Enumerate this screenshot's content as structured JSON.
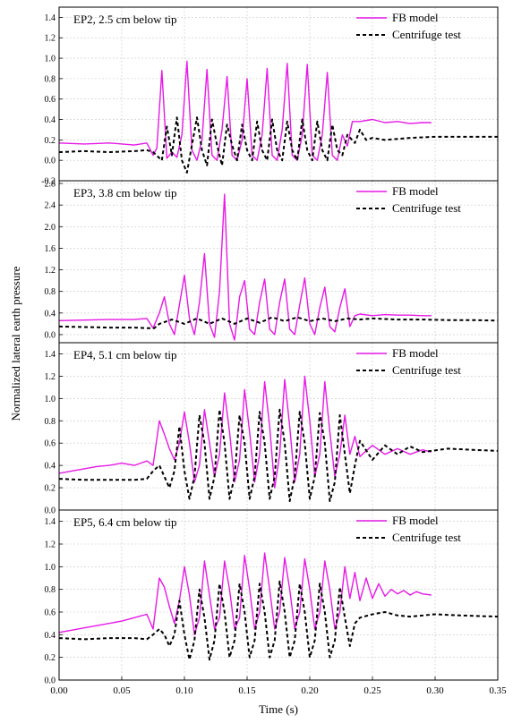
{
  "figure": {
    "ylabel": "Normalized lateral earth pressure",
    "xlabel": "Time (s)",
    "x_ticks": [
      "0.00",
      "0.05",
      "0.10",
      "0.15",
      "0.20",
      "0.25",
      "0.30",
      "0.35"
    ]
  },
  "colors": {
    "fb_model": "#e619e6",
    "centrifuge": "#000000",
    "grid": "#c8c8c8"
  },
  "chart_data": [
    {
      "type": "line",
      "title": "EP2, 2.5 cm below tip",
      "xlim": [
        0,
        0.35
      ],
      "ylim": [
        -0.2,
        1.5
      ],
      "y_ticks": [
        "-0.2",
        "0.0",
        "0.2",
        "0.4",
        "0.6",
        "0.8",
        "1.0",
        "1.2",
        "1.4"
      ],
      "grid": true,
      "legend_position": "top-right",
      "series": [
        {
          "name": "FB model",
          "x": [
            0,
            0.02,
            0.04,
            0.06,
            0.07,
            0.075,
            0.078,
            0.082,
            0.086,
            0.09,
            0.094,
            0.098,
            0.102,
            0.106,
            0.11,
            0.114,
            0.118,
            0.122,
            0.126,
            0.13,
            0.134,
            0.138,
            0.142,
            0.146,
            0.15,
            0.154,
            0.158,
            0.162,
            0.166,
            0.17,
            0.174,
            0.178,
            0.182,
            0.186,
            0.19,
            0.194,
            0.198,
            0.202,
            0.206,
            0.21,
            0.214,
            0.218,
            0.222,
            0.226,
            0.23,
            0.234,
            0.24,
            0.25,
            0.26,
            0.27,
            0.28,
            0.29,
            0.297
          ],
          "y": [
            0.17,
            0.16,
            0.17,
            0.15,
            0.17,
            0.05,
            0.12,
            0.88,
            0.02,
            0.08,
            0.03,
            0.25,
            0.97,
            0.1,
            0.0,
            0.2,
            0.89,
            0.05,
            0.0,
            0.3,
            0.82,
            0.05,
            0.0,
            0.2,
            0.8,
            0.05,
            0.0,
            0.25,
            0.9,
            0.05,
            0.0,
            0.3,
            0.95,
            0.05,
            0.0,
            0.25,
            0.94,
            0.05,
            0.0,
            0.25,
            0.86,
            0.05,
            0.0,
            0.25,
            0.14,
            0.38,
            0.38,
            0.4,
            0.37,
            0.38,
            0.36,
            0.37,
            0.37
          ]
        },
        {
          "name": "Centrifuge test",
          "x": [
            0,
            0.02,
            0.04,
            0.06,
            0.07,
            0.075,
            0.082,
            0.086,
            0.09,
            0.094,
            0.098,
            0.102,
            0.106,
            0.11,
            0.114,
            0.118,
            0.122,
            0.126,
            0.13,
            0.134,
            0.138,
            0.142,
            0.146,
            0.15,
            0.154,
            0.158,
            0.162,
            0.166,
            0.17,
            0.174,
            0.178,
            0.182,
            0.186,
            0.19,
            0.194,
            0.198,
            0.202,
            0.206,
            0.21,
            0.214,
            0.218,
            0.222,
            0.226,
            0.23,
            0.236,
            0.24,
            0.245,
            0.25,
            0.26,
            0.28,
            0.3,
            0.32,
            0.35
          ],
          "y": [
            0.08,
            0.09,
            0.08,
            0.09,
            0.1,
            0.08,
            0.0,
            0.33,
            0.05,
            0.42,
            0.0,
            -0.12,
            0.15,
            0.42,
            0.1,
            -0.05,
            0.4,
            0.15,
            -0.05,
            0.35,
            0.15,
            0.0,
            0.35,
            0.1,
            0.0,
            0.38,
            0.1,
            0.0,
            0.4,
            0.1,
            0.0,
            0.38,
            0.1,
            0.0,
            0.4,
            0.1,
            0.0,
            0.38,
            0.1,
            0.0,
            0.35,
            0.1,
            0.05,
            0.25,
            0.17,
            0.3,
            0.2,
            0.22,
            0.2,
            0.22,
            0.23,
            0.23,
            0.23
          ]
        }
      ]
    },
    {
      "type": "line",
      "title": "EP3, 3.8 cm below tip",
      "xlim": [
        0,
        0.35
      ],
      "ylim": [
        -0.15,
        2.85
      ],
      "y_ticks": [
        "0.0",
        "0.4",
        "0.8",
        "1.2",
        "1.6",
        "2.0",
        "2.4",
        "2.8"
      ],
      "grid": true,
      "legend_position": "top-right",
      "series": [
        {
          "name": "FB model",
          "x": [
            0,
            0.02,
            0.04,
            0.06,
            0.07,
            0.075,
            0.08,
            0.084,
            0.088,
            0.092,
            0.096,
            0.1,
            0.104,
            0.108,
            0.112,
            0.116,
            0.12,
            0.124,
            0.128,
            0.132,
            0.136,
            0.14,
            0.144,
            0.148,
            0.152,
            0.156,
            0.16,
            0.164,
            0.168,
            0.172,
            0.176,
            0.18,
            0.184,
            0.188,
            0.192,
            0.196,
            0.2,
            0.204,
            0.208,
            0.212,
            0.216,
            0.22,
            0.224,
            0.228,
            0.232,
            0.236,
            0.24,
            0.25,
            0.26,
            0.27,
            0.28,
            0.29,
            0.297
          ],
          "y": [
            0.26,
            0.27,
            0.28,
            0.28,
            0.3,
            0.12,
            0.4,
            0.7,
            0.2,
            0.0,
            0.55,
            1.1,
            0.3,
            0.0,
            0.6,
            1.5,
            0.2,
            -0.05,
            0.8,
            2.6,
            0.2,
            -0.1,
            0.7,
            1.0,
            0.1,
            0.0,
            0.6,
            1.03,
            0.1,
            0.0,
            0.6,
            1.03,
            0.1,
            0.0,
            0.55,
            1.05,
            0.2,
            0.0,
            0.5,
            0.88,
            0.15,
            0.05,
            0.5,
            0.85,
            0.15,
            0.35,
            0.38,
            0.35,
            0.37,
            0.36,
            0.36,
            0.35,
            0.35
          ]
        },
        {
          "name": "Centrifuge test",
          "x": [
            0,
            0.02,
            0.04,
            0.06,
            0.07,
            0.076,
            0.08,
            0.09,
            0.1,
            0.11,
            0.12,
            0.13,
            0.14,
            0.15,
            0.16,
            0.17,
            0.18,
            0.19,
            0.2,
            0.21,
            0.22,
            0.23,
            0.24,
            0.25,
            0.27,
            0.29,
            0.31,
            0.33,
            0.35
          ],
          "y": [
            0.15,
            0.14,
            0.13,
            0.13,
            0.12,
            0.12,
            0.2,
            0.28,
            0.2,
            0.3,
            0.2,
            0.3,
            0.2,
            0.3,
            0.22,
            0.32,
            0.25,
            0.32,
            0.25,
            0.3,
            0.25,
            0.3,
            0.28,
            0.3,
            0.28,
            0.28,
            0.27,
            0.27,
            0.26
          ]
        }
      ]
    },
    {
      "type": "line",
      "title": "EP4, 5.1 cm below tip",
      "xlim": [
        0,
        0.35
      ],
      "ylim": [
        0.0,
        1.5
      ],
      "y_ticks": [
        "0.0",
        "0.2",
        "0.4",
        "0.6",
        "0.8",
        "1.0",
        "1.2",
        "1.4"
      ],
      "grid": true,
      "legend_position": "top-right",
      "series": [
        {
          "name": "FB model",
          "x": [
            0,
            0.01,
            0.02,
            0.03,
            0.04,
            0.05,
            0.06,
            0.07,
            0.075,
            0.08,
            0.084,
            0.088,
            0.092,
            0.096,
            0.1,
            0.104,
            0.108,
            0.112,
            0.116,
            0.12,
            0.124,
            0.128,
            0.132,
            0.136,
            0.14,
            0.144,
            0.148,
            0.152,
            0.156,
            0.16,
            0.164,
            0.168,
            0.172,
            0.176,
            0.18,
            0.184,
            0.188,
            0.192,
            0.196,
            0.2,
            0.204,
            0.208,
            0.212,
            0.216,
            0.22,
            0.224,
            0.228,
            0.232,
            0.236,
            0.24,
            0.25,
            0.26,
            0.27,
            0.28,
            0.29,
            0.297
          ],
          "y": [
            0.33,
            0.35,
            0.37,
            0.39,
            0.4,
            0.42,
            0.4,
            0.44,
            0.4,
            0.8,
            0.68,
            0.55,
            0.45,
            0.6,
            0.88,
            0.6,
            0.25,
            0.4,
            0.9,
            0.6,
            0.3,
            0.5,
            1.05,
            0.7,
            0.25,
            0.45,
            1.08,
            0.7,
            0.25,
            0.5,
            1.15,
            0.75,
            0.2,
            0.5,
            1.17,
            0.75,
            0.25,
            0.5,
            1.2,
            0.8,
            0.3,
            0.5,
            1.15,
            0.7,
            0.3,
            0.5,
            0.85,
            0.5,
            0.66,
            0.48,
            0.58,
            0.5,
            0.55,
            0.5,
            0.54,
            0.52
          ]
        },
        {
          "name": "Centrifuge test",
          "x": [
            0,
            0.02,
            0.04,
            0.06,
            0.07,
            0.075,
            0.08,
            0.084,
            0.088,
            0.092,
            0.096,
            0.1,
            0.104,
            0.108,
            0.112,
            0.116,
            0.12,
            0.124,
            0.128,
            0.132,
            0.136,
            0.14,
            0.144,
            0.148,
            0.152,
            0.156,
            0.16,
            0.164,
            0.168,
            0.172,
            0.176,
            0.18,
            0.184,
            0.188,
            0.192,
            0.196,
            0.2,
            0.204,
            0.208,
            0.212,
            0.216,
            0.22,
            0.224,
            0.228,
            0.232,
            0.236,
            0.24,
            0.25,
            0.26,
            0.27,
            0.28,
            0.29,
            0.31,
            0.33,
            0.35
          ],
          "y": [
            0.28,
            0.27,
            0.27,
            0.27,
            0.28,
            0.35,
            0.4,
            0.3,
            0.2,
            0.35,
            0.75,
            0.35,
            0.1,
            0.3,
            0.85,
            0.6,
            0.1,
            0.3,
            0.9,
            0.6,
            0.1,
            0.3,
            0.85,
            0.6,
            0.1,
            0.3,
            0.88,
            0.6,
            0.1,
            0.3,
            0.9,
            0.6,
            0.08,
            0.3,
            0.88,
            0.6,
            0.1,
            0.3,
            0.87,
            0.6,
            0.08,
            0.25,
            0.85,
            0.5,
            0.15,
            0.4,
            0.62,
            0.45,
            0.58,
            0.5,
            0.57,
            0.52,
            0.55,
            0.54,
            0.53
          ]
        }
      ]
    },
    {
      "type": "line",
      "title": "EP5, 6.4 cm below tip",
      "xlim": [
        0,
        0.35
      ],
      "ylim": [
        0.0,
        1.5
      ],
      "y_ticks": [
        "0.0",
        "0.2",
        "0.4",
        "0.6",
        "0.8",
        "1.0",
        "1.2",
        "1.4"
      ],
      "grid": true,
      "legend_position": "top-right",
      "series": [
        {
          "name": "FB model",
          "x": [
            0,
            0.01,
            0.02,
            0.03,
            0.04,
            0.05,
            0.06,
            0.07,
            0.075,
            0.08,
            0.084,
            0.088,
            0.092,
            0.096,
            0.1,
            0.104,
            0.108,
            0.112,
            0.116,
            0.12,
            0.124,
            0.128,
            0.132,
            0.136,
            0.14,
            0.144,
            0.148,
            0.152,
            0.156,
            0.16,
            0.164,
            0.168,
            0.172,
            0.176,
            0.18,
            0.184,
            0.188,
            0.192,
            0.196,
            0.2,
            0.204,
            0.208,
            0.212,
            0.216,
            0.22,
            0.224,
            0.228,
            0.232,
            0.236,
            0.24,
            0.245,
            0.25,
            0.255,
            0.26,
            0.265,
            0.27,
            0.275,
            0.28,
            0.285,
            0.29,
            0.297
          ],
          "y": [
            0.42,
            0.44,
            0.46,
            0.48,
            0.5,
            0.52,
            0.55,
            0.58,
            0.45,
            0.9,
            0.82,
            0.65,
            0.5,
            0.7,
            1.0,
            0.75,
            0.4,
            0.55,
            1.05,
            0.75,
            0.45,
            0.55,
            1.05,
            0.8,
            0.45,
            0.55,
            1.1,
            0.8,
            0.45,
            0.6,
            1.12,
            0.8,
            0.45,
            0.6,
            1.08,
            0.8,
            0.45,
            0.6,
            1.07,
            0.8,
            0.45,
            0.6,
            1.05,
            0.8,
            0.45,
            0.6,
            1.0,
            0.72,
            0.95,
            0.7,
            0.9,
            0.72,
            0.85,
            0.74,
            0.8,
            0.76,
            0.79,
            0.75,
            0.78,
            0.76,
            0.75
          ]
        },
        {
          "name": "Centrifuge test",
          "x": [
            0,
            0.02,
            0.04,
            0.06,
            0.07,
            0.075,
            0.08,
            0.084,
            0.088,
            0.092,
            0.096,
            0.1,
            0.104,
            0.108,
            0.112,
            0.116,
            0.12,
            0.124,
            0.128,
            0.132,
            0.136,
            0.14,
            0.144,
            0.148,
            0.152,
            0.156,
            0.16,
            0.164,
            0.168,
            0.172,
            0.176,
            0.18,
            0.184,
            0.188,
            0.192,
            0.196,
            0.2,
            0.204,
            0.208,
            0.212,
            0.216,
            0.22,
            0.224,
            0.228,
            0.232,
            0.236,
            0.24,
            0.25,
            0.26,
            0.27,
            0.28,
            0.3,
            0.32,
            0.35
          ],
          "y": [
            0.37,
            0.36,
            0.37,
            0.37,
            0.36,
            0.4,
            0.45,
            0.4,
            0.3,
            0.4,
            0.7,
            0.4,
            0.18,
            0.35,
            0.8,
            0.55,
            0.18,
            0.35,
            0.85,
            0.6,
            0.2,
            0.35,
            0.85,
            0.6,
            0.2,
            0.35,
            0.85,
            0.6,
            0.2,
            0.35,
            0.87,
            0.6,
            0.2,
            0.35,
            0.85,
            0.6,
            0.2,
            0.35,
            0.85,
            0.6,
            0.2,
            0.35,
            0.82,
            0.55,
            0.3,
            0.5,
            0.55,
            0.58,
            0.6,
            0.57,
            0.56,
            0.58,
            0.57,
            0.56
          ]
        }
      ]
    }
  ]
}
